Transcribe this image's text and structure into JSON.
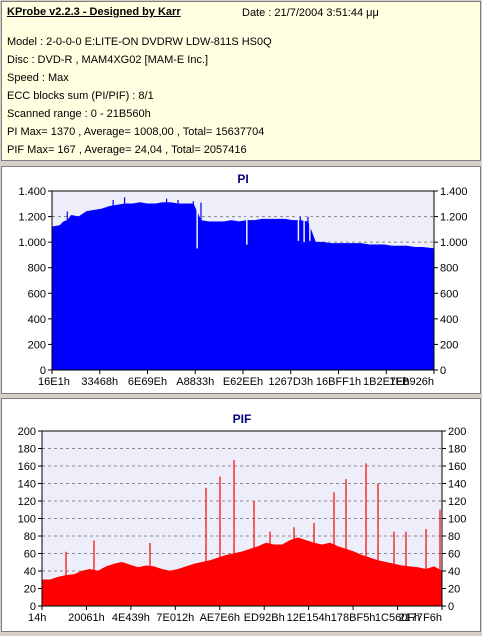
{
  "info": {
    "title": "KProbe v2.2.3 - Designed by Karr",
    "date": "Date : 21/7/2004 3:51:44 μμ",
    "lines": [
      "Model : 2-0-0-0 E:LITE-ON DVDRW LDW-811S   HS0Q",
      "Disc : DVD-R , MAM4XG02 [MAM-E Inc.]",
      "Speed : Max",
      "ECC blocks sum (PI/PIF) : 8/1",
      "Scanned range : 0 - 21B560h",
      "PI Max= 1370 , Average= 1008,00 , Total= 15637704",
      "PIF Max= 167 , Average= 24,04 , Total= 2057416"
    ]
  },
  "colors": {
    "pi_fill": "#0000ff",
    "pif_fill": "#ff0000",
    "plot_background": "#eeeefa",
    "title_color": "#000080"
  },
  "chart_data": [
    {
      "type": "area",
      "title": "PI",
      "xlabel": "",
      "ylabel": "",
      "ylim": [
        0,
        1400
      ],
      "yticks": [
        0,
        200,
        400,
        600,
        800,
        1000,
        1200,
        1400
      ],
      "ytick_labels": [
        "0",
        "200",
        "400",
        "600",
        "800",
        "1.000",
        "1.200",
        "1.400"
      ],
      "xtick_labels": [
        "16E1h",
        "33468h",
        "6E69Eh",
        "A8833h",
        "E62EEh",
        "1267D3h",
        "16BFF1h",
        "1B2E7Eh",
        "1FB926h"
      ],
      "grid": true,
      "color": "#0000ff",
      "x": [
        0.0,
        0.02,
        0.03,
        0.04,
        0.05,
        0.07,
        0.09,
        0.11,
        0.13,
        0.15,
        0.17,
        0.19,
        0.21,
        0.23,
        0.25,
        0.27,
        0.29,
        0.31,
        0.33,
        0.35,
        0.37,
        0.39,
        0.41,
        0.43,
        0.45,
        0.47,
        0.49,
        0.51,
        0.53,
        0.55,
        0.57,
        0.59,
        0.61,
        0.63,
        0.65,
        0.67,
        0.69,
        0.71,
        0.73,
        0.75,
        0.77,
        0.79,
        0.81,
        0.83,
        0.85,
        0.87,
        0.89,
        0.91,
        0.93,
        0.95,
        0.97,
        1.0
      ],
      "values": [
        1120,
        1130,
        1160,
        1170,
        1210,
        1200,
        1240,
        1250,
        1260,
        1280,
        1290,
        1300,
        1300,
        1310,
        1300,
        1300,
        1310,
        1310,
        1300,
        1300,
        1300,
        1170,
        1160,
        1160,
        1160,
        1170,
        1160,
        1170,
        1170,
        1180,
        1180,
        1180,
        1180,
        1170,
        1170,
        1160,
        1000,
        1000,
        990,
        990,
        990,
        990,
        990,
        980,
        980,
        980,
        970,
        970,
        970,
        960,
        960,
        950
      ],
      "spikes": [
        {
          "x": 0.04,
          "y": 1240
        },
        {
          "x": 0.16,
          "y": 1330
        },
        {
          "x": 0.19,
          "y": 1350
        },
        {
          "x": 0.3,
          "y": 1340
        },
        {
          "x": 0.33,
          "y": 1330
        },
        {
          "x": 0.37,
          "y": 1320
        },
        {
          "x": 0.39,
          "y": 1310
        },
        {
          "x": 0.52,
          "y": 1110
        },
        {
          "x": 0.65,
          "y": 1200
        },
        {
          "x": 0.67,
          "y": 1200
        }
      ],
      "dips": [
        {
          "x": 0.38,
          "y": 950
        },
        {
          "x": 0.51,
          "y": 980
        },
        {
          "x": 0.645,
          "y": 1010
        },
        {
          "x": 0.66,
          "y": 1000
        },
        {
          "x": 0.675,
          "y": 1010
        }
      ]
    },
    {
      "type": "area",
      "title": "PIF",
      "xlabel": "",
      "ylabel": "",
      "ylim": [
        0,
        200
      ],
      "yticks": [
        0,
        20,
        40,
        60,
        80,
        100,
        120,
        140,
        160,
        180,
        200
      ],
      "ytick_labels": [
        "0",
        "20",
        "40",
        "60",
        "80",
        "100",
        "120",
        "140",
        "160",
        "180",
        "200"
      ],
      "xtick_labels": [
        "14h",
        "20061h",
        "4E439h",
        "7E012h",
        "AE7E6h",
        "ED92Bh",
        "12E154h",
        "178BF5h",
        "1C560Fh",
        "2177F6h"
      ],
      "grid": true,
      "color": "#ff0000",
      "x": [
        0.0,
        0.02,
        0.04,
        0.06,
        0.08,
        0.1,
        0.12,
        0.14,
        0.16,
        0.18,
        0.2,
        0.22,
        0.24,
        0.26,
        0.28,
        0.3,
        0.32,
        0.34,
        0.36,
        0.38,
        0.4,
        0.42,
        0.44,
        0.46,
        0.48,
        0.5,
        0.52,
        0.54,
        0.56,
        0.58,
        0.6,
        0.62,
        0.64,
        0.66,
        0.68,
        0.7,
        0.72,
        0.74,
        0.76,
        0.78,
        0.8,
        0.82,
        0.84,
        0.86,
        0.88,
        0.9,
        0.92,
        0.94,
        0.96,
        0.98,
        1.0
      ],
      "values": [
        30,
        30,
        33,
        35,
        36,
        40,
        42,
        40,
        45,
        48,
        50,
        47,
        44,
        46,
        45,
        42,
        40,
        42,
        45,
        48,
        50,
        52,
        55,
        58,
        60,
        62,
        65,
        68,
        72,
        70,
        70,
        75,
        78,
        75,
        72,
        70,
        72,
        68,
        65,
        62,
        58,
        55,
        52,
        50,
        48,
        46,
        45,
        44,
        42,
        45,
        40
      ],
      "spikes": [
        {
          "x": 0.06,
          "y": 62
        },
        {
          "x": 0.13,
          "y": 75
        },
        {
          "x": 0.27,
          "y": 72
        },
        {
          "x": 0.41,
          "y": 135
        },
        {
          "x": 0.445,
          "y": 148
        },
        {
          "x": 0.48,
          "y": 167
        },
        {
          "x": 0.53,
          "y": 120
        },
        {
          "x": 0.57,
          "y": 85
        },
        {
          "x": 0.63,
          "y": 90
        },
        {
          "x": 0.68,
          "y": 95
        },
        {
          "x": 0.73,
          "y": 130
        },
        {
          "x": 0.76,
          "y": 145
        },
        {
          "x": 0.81,
          "y": 163
        },
        {
          "x": 0.84,
          "y": 140
        },
        {
          "x": 0.88,
          "y": 85
        },
        {
          "x": 0.91,
          "y": 85
        },
        {
          "x": 0.96,
          "y": 88
        },
        {
          "x": 0.995,
          "y": 110
        }
      ]
    }
  ]
}
